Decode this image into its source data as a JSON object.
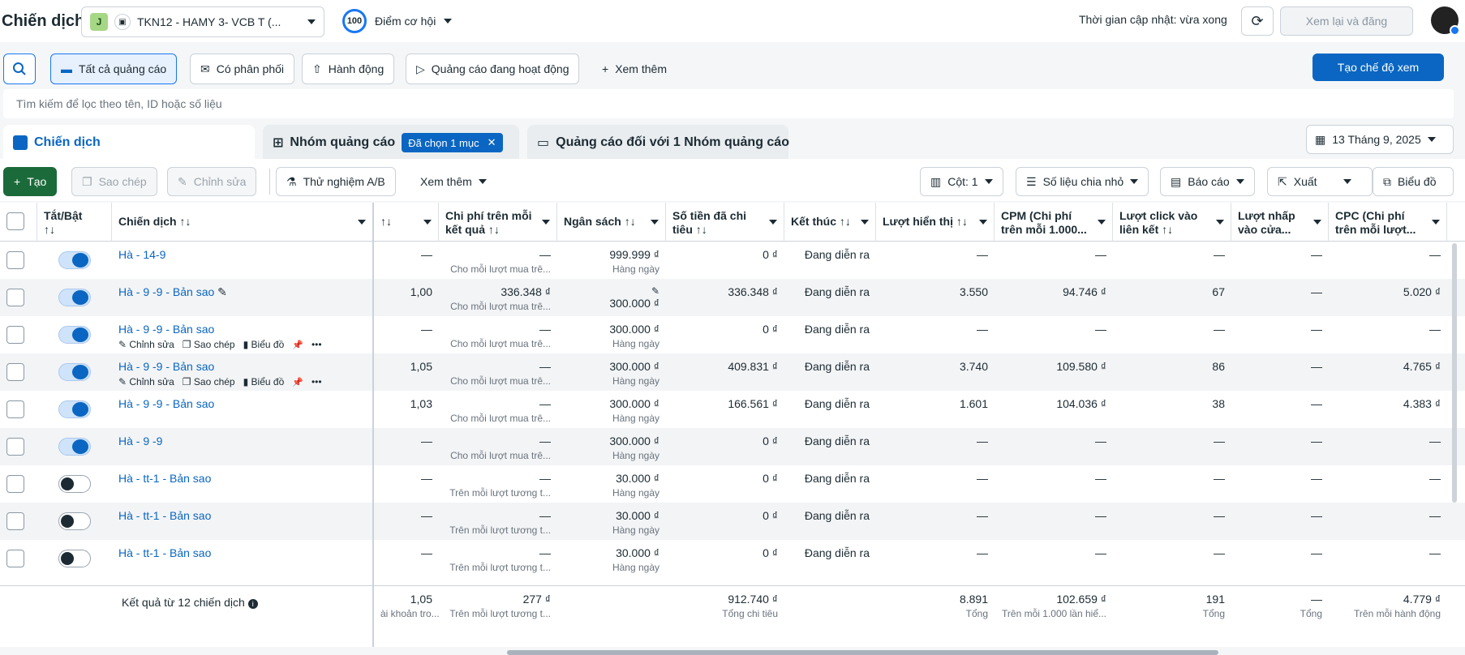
{
  "header": {
    "title": "Chiến dịch",
    "account_initial": "J",
    "account_name": "TKN12 - HAMY 3- VCB T (...",
    "score_value": "100",
    "score_label": "Điểm cơ hội",
    "updated": "Thời gian cập nhật: vừa xong",
    "review_label": "Xem lại và đăng",
    "more_label": "···"
  },
  "filters": {
    "all_ads": "Tất cả quảng cáo",
    "delivery": "Có phân phối",
    "actions": "Hành động",
    "active_ads": "Quảng cáo đang hoạt động",
    "see_more": "Xem thêm",
    "create_view": "Tạo chế độ xem",
    "search_placeholder": "Tìm kiếm để lọc theo tên, ID hoặc số liệu"
  },
  "tabs": {
    "campaigns": "Chiến dịch",
    "adsets": "Nhóm quảng cáo",
    "selected_chip": "Đã chọn 1 mục",
    "ads": "Quảng cáo đối với 1 Nhóm quảng cáo",
    "date": "13 Tháng 9, 2025"
  },
  "toolbar": {
    "create": "Tạo",
    "copy": "Sao chép",
    "edit": "Chỉnh sửa",
    "ab_test": "Thử nghiệm A/B",
    "see_more": "Xem thêm",
    "columns": "Cột: 1",
    "breakdown": "Số liệu chia nhỏ",
    "report": "Báo cáo",
    "export": "Xuất",
    "chart": "Biểu đồ"
  },
  "columns": {
    "toggle": "Tắt/Bật",
    "toggle_sort": "↑↓",
    "name": "Chiến dịch ↑↓",
    "results_sort": "↑↓",
    "cpr": "Chi phí trên mỗi kết quả ↑↓",
    "budget": "Ngân sách ↑↓",
    "spent": "Số tiền đã chi tiêu ↑↓",
    "ends": "Kết thúc ↑↓",
    "impressions": "Lượt hiển thị ↑↓",
    "cpm": "CPM (Chi phí trên mỗi 1.000...",
    "link_clicks": "Lượt click vào liên kết ↑↓",
    "store_clicks": "Lượt nhấp vào cửa...",
    "cpc": "CPC (Chi phí trên mỗi lượt..."
  },
  "row_actions": {
    "edit": "Chỉnh sửa",
    "copy": "Sao chép",
    "chart": "Biểu đồ"
  },
  "rows": [
    {
      "on": true,
      "name": "Hà - 14-9",
      "results": "—",
      "cpr": "—",
      "cpr_sub": "Cho mỗi lượt mua trê...",
      "budget": "999.999 ₫",
      "budget_sub": "Hàng ngày",
      "spent": "0 ₫",
      "ends": "Đang diễn ra",
      "impr": "—",
      "cpm": "—",
      "clicks": "—",
      "store": "—",
      "cpc": "—",
      "show_actions": false
    },
    {
      "on": true,
      "name": "Hà - 9 -9 - Bản sao",
      "results": "1,00",
      "cpr": "336.348 ₫",
      "cpr_sub": "Cho mỗi lượt mua trê...",
      "budget": "300.000 ₫",
      "budget_sub": "",
      "spent": "336.348 ₫",
      "ends": "Đang diễn ra",
      "impr": "3.550",
      "cpm": "94.746 ₫",
      "clicks": "67",
      "store": "—",
      "cpc": "5.020 ₫",
      "show_actions": false
    },
    {
      "on": true,
      "name": "Hà - 9 -9 - Bản sao",
      "results": "—",
      "cpr": "—",
      "cpr_sub": "Cho mỗi lượt mua trê...",
      "budget": "300.000 ₫",
      "budget_sub": "Hàng ngày",
      "spent": "0 ₫",
      "ends": "Đang diễn ra",
      "impr": "—",
      "cpm": "—",
      "clicks": "—",
      "store": "—",
      "cpc": "—",
      "show_actions": true
    },
    {
      "on": true,
      "name": "Hà - 9 -9 - Bản sao",
      "results": "1,05",
      "cpr": "—",
      "cpr_sub": "Cho mỗi lượt mua trê...",
      "budget": "300.000 ₫",
      "budget_sub": "Hàng ngày",
      "spent": "409.831 ₫",
      "ends": "Đang diễn ra",
      "impr": "3.740",
      "cpm": "109.580 ₫",
      "clicks": "86",
      "store": "—",
      "cpc": "4.765 ₫",
      "show_actions": true
    },
    {
      "on": true,
      "name": "Hà - 9 -9 - Bản sao",
      "results": "1,03",
      "cpr": "—",
      "cpr_sub": "Cho mỗi lượt mua trê...",
      "budget": "300.000 ₫",
      "budget_sub": "Hàng ngày",
      "spent": "166.561 ₫",
      "ends": "Đang diễn ra",
      "impr": "1.601",
      "cpm": "104.036 ₫",
      "clicks": "38",
      "store": "—",
      "cpc": "4.383 ₫",
      "show_actions": false
    },
    {
      "on": true,
      "name": "Hà - 9 -9",
      "results": "—",
      "cpr": "—",
      "cpr_sub": "Cho mỗi lượt mua trê...",
      "budget": "300.000 ₫",
      "budget_sub": "Hàng ngày",
      "spent": "0 ₫",
      "ends": "Đang diễn ra",
      "impr": "—",
      "cpm": "—",
      "clicks": "—",
      "store": "—",
      "cpc": "—",
      "show_actions": false
    },
    {
      "on": false,
      "name": "Hà - tt-1 - Bản sao",
      "results": "—",
      "cpr": "—",
      "cpr_sub": "Trên mỗi lượt tương t...",
      "budget": "30.000 ₫",
      "budget_sub": "Hàng ngày",
      "spent": "0 ₫",
      "ends": "Đang diễn ra",
      "impr": "—",
      "cpm": "—",
      "clicks": "—",
      "store": "—",
      "cpc": "—",
      "show_actions": false
    },
    {
      "on": false,
      "name": "Hà - tt-1 - Bản sao",
      "results": "—",
      "cpr": "—",
      "cpr_sub": "Trên mỗi lượt tương t...",
      "budget": "30.000 ₫",
      "budget_sub": "Hàng ngày",
      "spent": "0 ₫",
      "ends": "Đang diễn ra",
      "impr": "—",
      "cpm": "—",
      "clicks": "—",
      "store": "—",
      "cpc": "—",
      "show_actions": false
    },
    {
      "on": false,
      "name": "Hà - tt-1 - Bản sao",
      "results": "—",
      "cpr": "—",
      "cpr_sub": "Trên mỗi lượt tương t...",
      "budget": "30.000 ₫",
      "budget_sub": "Hàng ngày",
      "spent": "0 ₫",
      "ends": "Đang diễn ra",
      "impr": "—",
      "cpm": "—",
      "clicks": "—",
      "store": "—",
      "cpc": "—",
      "show_actions": false
    }
  ],
  "footer": {
    "label": "Kết quả từ 12 chiến dịch",
    "results": "1,05",
    "results_sub": "ài khoản tro...",
    "cpr": "277 ₫",
    "cpr_sub": "Trên mỗi lượt tương t...",
    "spent": "912.740 ₫",
    "spent_sub": "Tổng chi tiêu",
    "impr": "8.891",
    "impr_sub": "Tổng",
    "cpm": "102.659 ₫",
    "cpm_sub": "Trên mỗi 1.000 lần hiể...",
    "clicks": "191",
    "clicks_sub": "Tổng",
    "store": "—",
    "store_sub": "Tổng",
    "cpc": "4.779 ₫",
    "cpc_sub": "Trên mỗi hành động"
  }
}
